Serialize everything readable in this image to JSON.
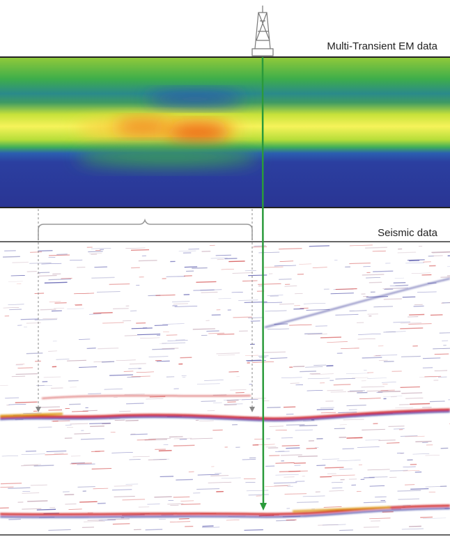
{
  "em_label": "Multi-Transient EM data",
  "seismic_label": "Seismic data"
}
